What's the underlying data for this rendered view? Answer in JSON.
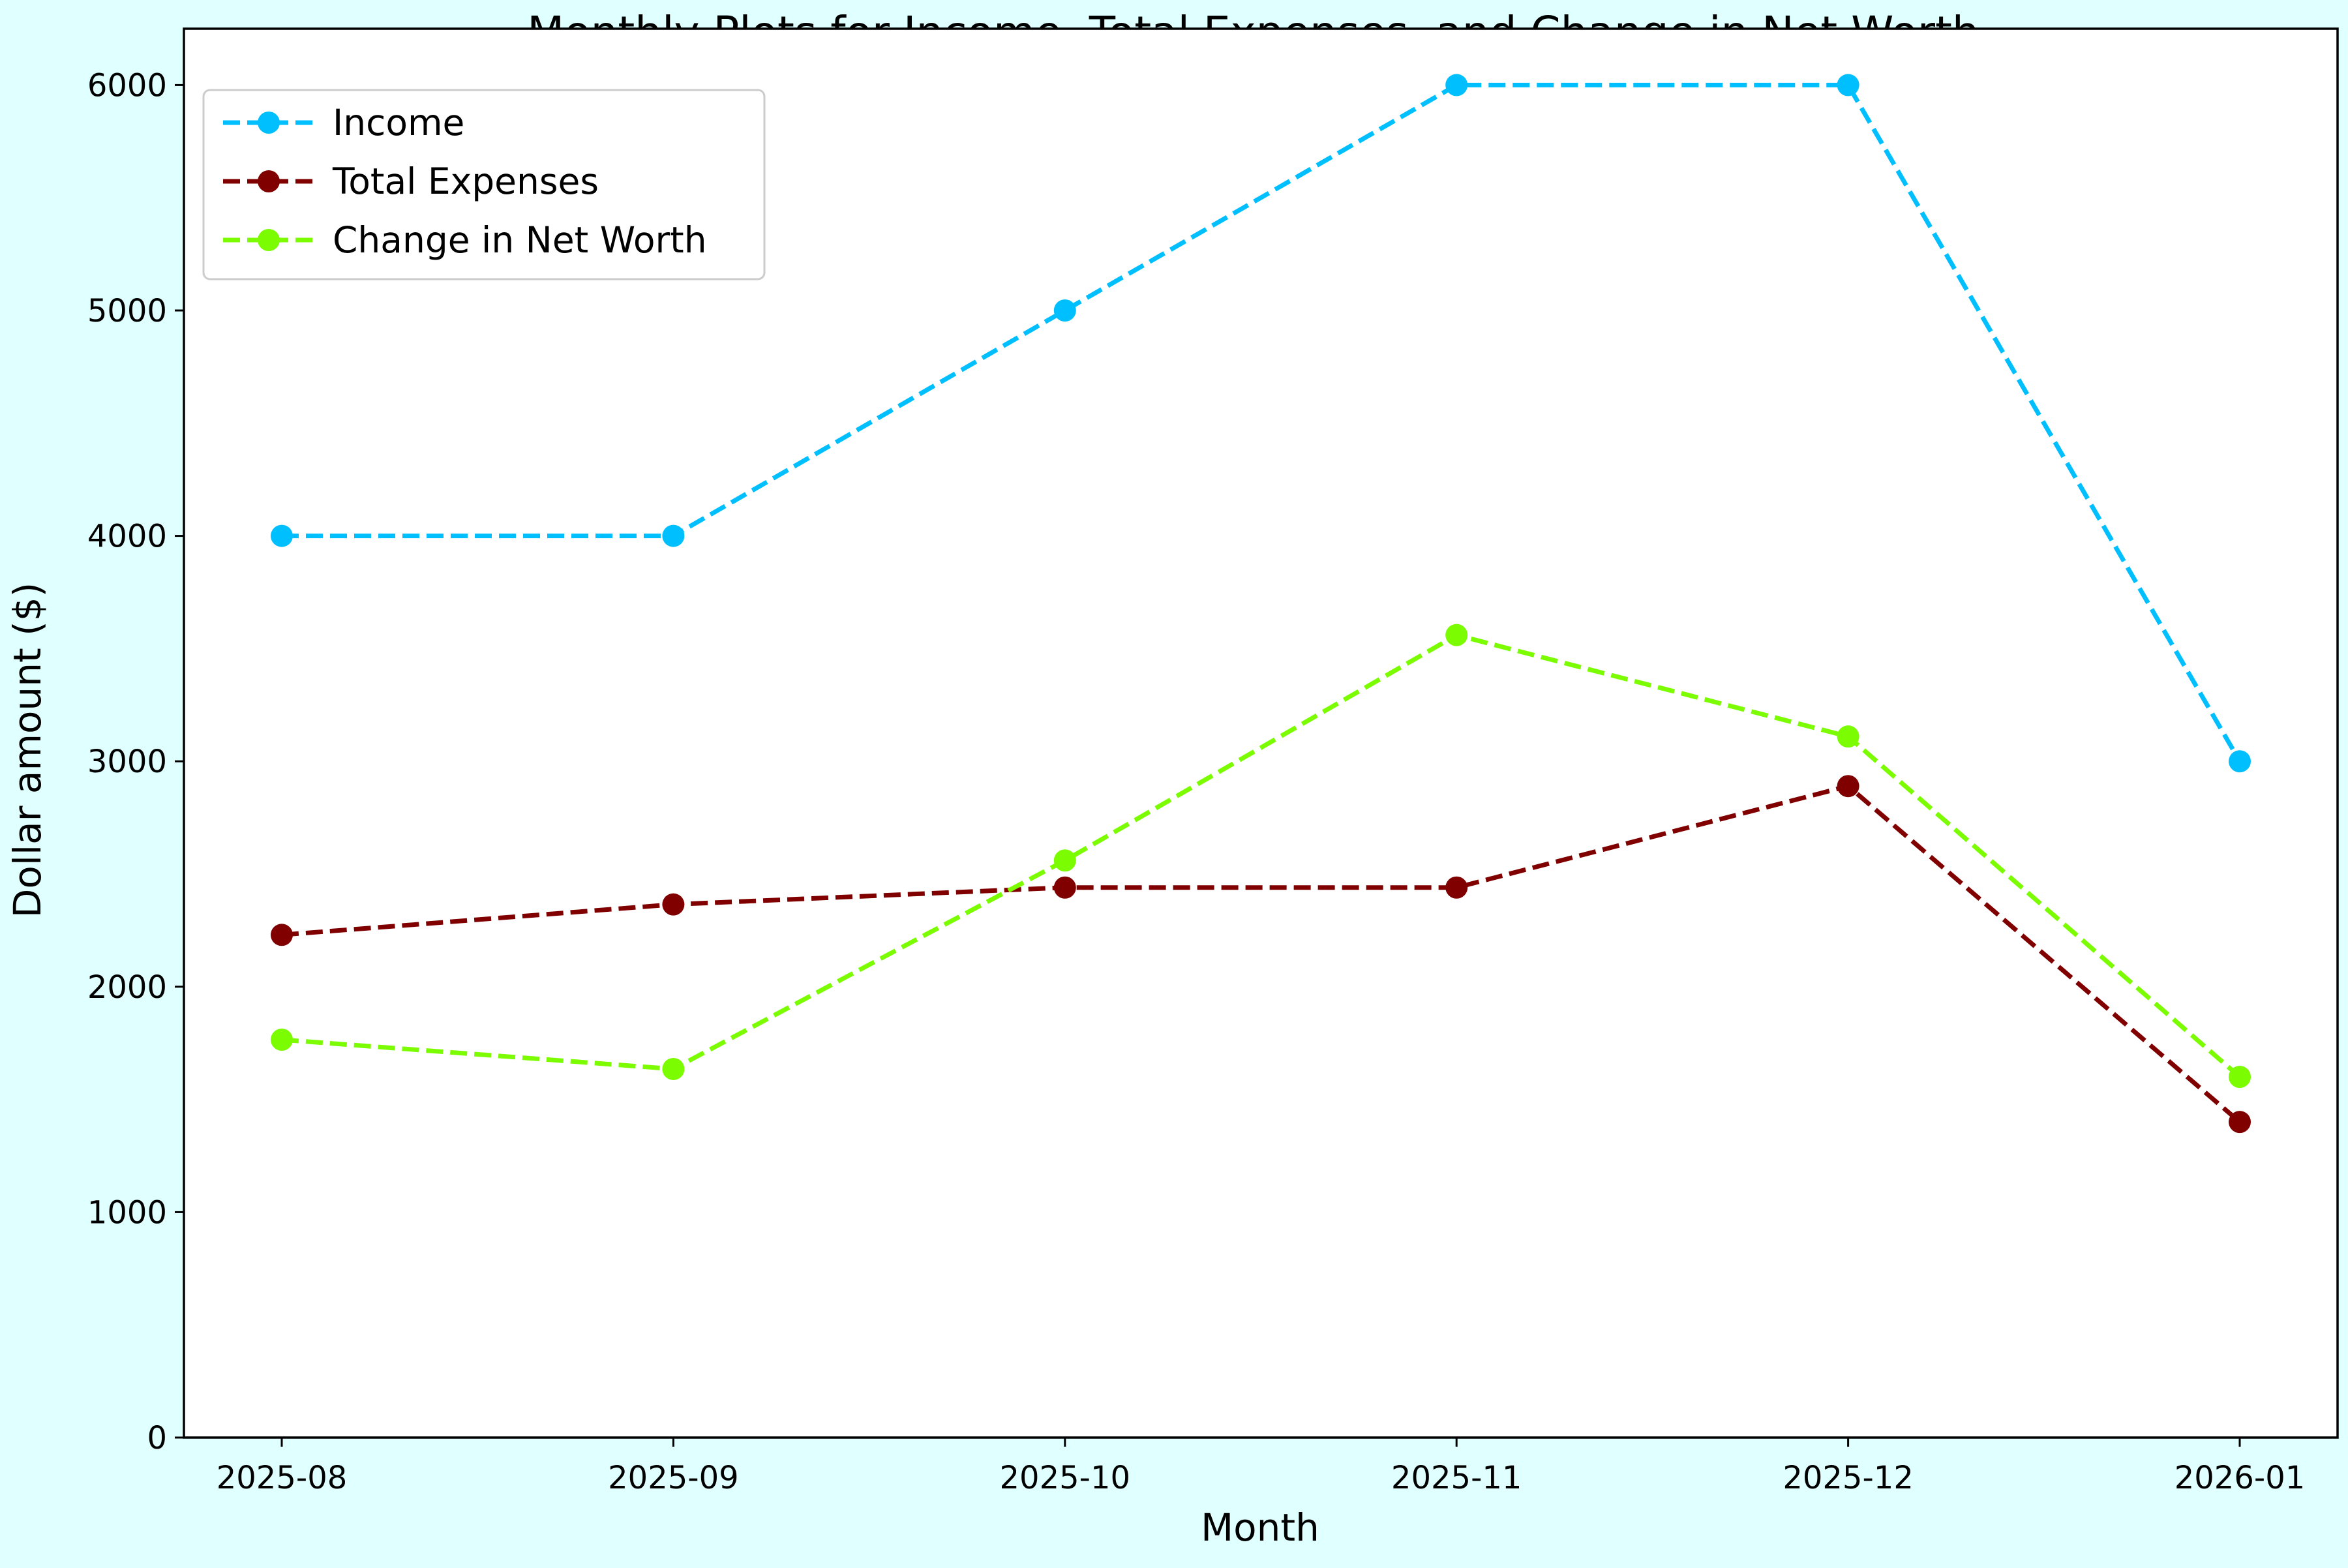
{
  "chart_data": {
    "type": "line",
    "title": "Monthly Plots for Income, Total Expenses, and Change in Net Worth.",
    "xlabel": "Month",
    "ylabel": "Dollar amount ($)",
    "categories": [
      "2025-08",
      "2025-09",
      "2025-10",
      "2025-11",
      "2025-12",
      "2026-01"
    ],
    "ylim": [
      0,
      6250
    ],
    "yticks": [
      0,
      1000,
      2000,
      3000,
      4000,
      5000,
      6000
    ],
    "grid": false,
    "legend_position": "top-left",
    "line_style": "dashed",
    "marker": "circle",
    "background_color": "#e0ffff",
    "plot_background_color": "#ffffff",
    "series": [
      {
        "name": "Income",
        "color": "#00bfff",
        "values": [
          4000,
          4000,
          5000,
          6000,
          6000,
          3000
        ]
      },
      {
        "name": "Total Expenses",
        "color": "#800000",
        "values": [
          2230,
          2365,
          2440,
          2440,
          2890,
          1400
        ]
      },
      {
        "name": "Change in Net Worth",
        "color": "#7cfc00",
        "values": [
          1765,
          1635,
          2560,
          3560,
          3110,
          1600
        ]
      }
    ]
  }
}
